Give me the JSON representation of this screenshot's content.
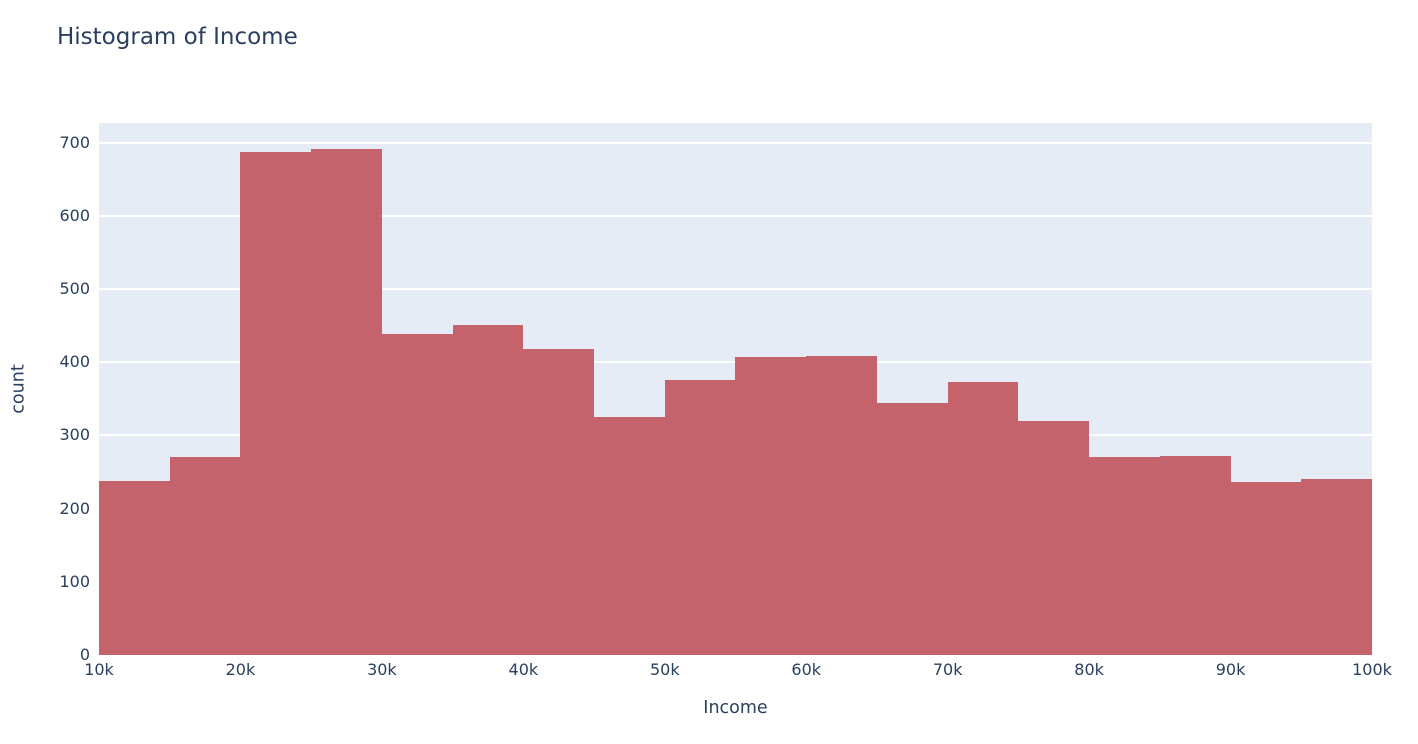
{
  "chart_data": {
    "type": "histogram",
    "title": "Histogram of Income",
    "xlabel": "Income",
    "ylabel": "count",
    "bin_width": 5000,
    "bin_edges": [
      10000,
      15000,
      20000,
      25000,
      30000,
      35000,
      40000,
      45000,
      50000,
      55000,
      60000,
      65000,
      70000,
      75000,
      80000,
      85000,
      90000,
      95000,
      100000
    ],
    "counts": [
      238,
      271,
      688,
      691,
      439,
      451,
      418,
      325,
      376,
      407,
      409,
      344,
      373,
      320,
      270,
      272,
      237,
      240
    ],
    "x_tick_labels": [
      "10k",
      "20k",
      "30k",
      "40k",
      "50k",
      "60k",
      "70k",
      "80k",
      "90k",
      "100k"
    ],
    "x_tick_values": [
      10000,
      20000,
      30000,
      40000,
      50000,
      60000,
      70000,
      80000,
      90000,
      100000
    ],
    "y_tick_values": [
      0,
      100,
      200,
      300,
      400,
      500,
      600,
      700
    ],
    "xlim": [
      10000,
      100000
    ],
    "ylim": [
      0,
      727
    ],
    "grid": true,
    "legend": false,
    "colors": {
      "bar": "rgba(194,88,97,0.93)",
      "plot_background": "#E5ECF6",
      "gridline": "#FFFFFF",
      "text": "#2A3F5F",
      "page_background": "#FFFFFF"
    }
  }
}
